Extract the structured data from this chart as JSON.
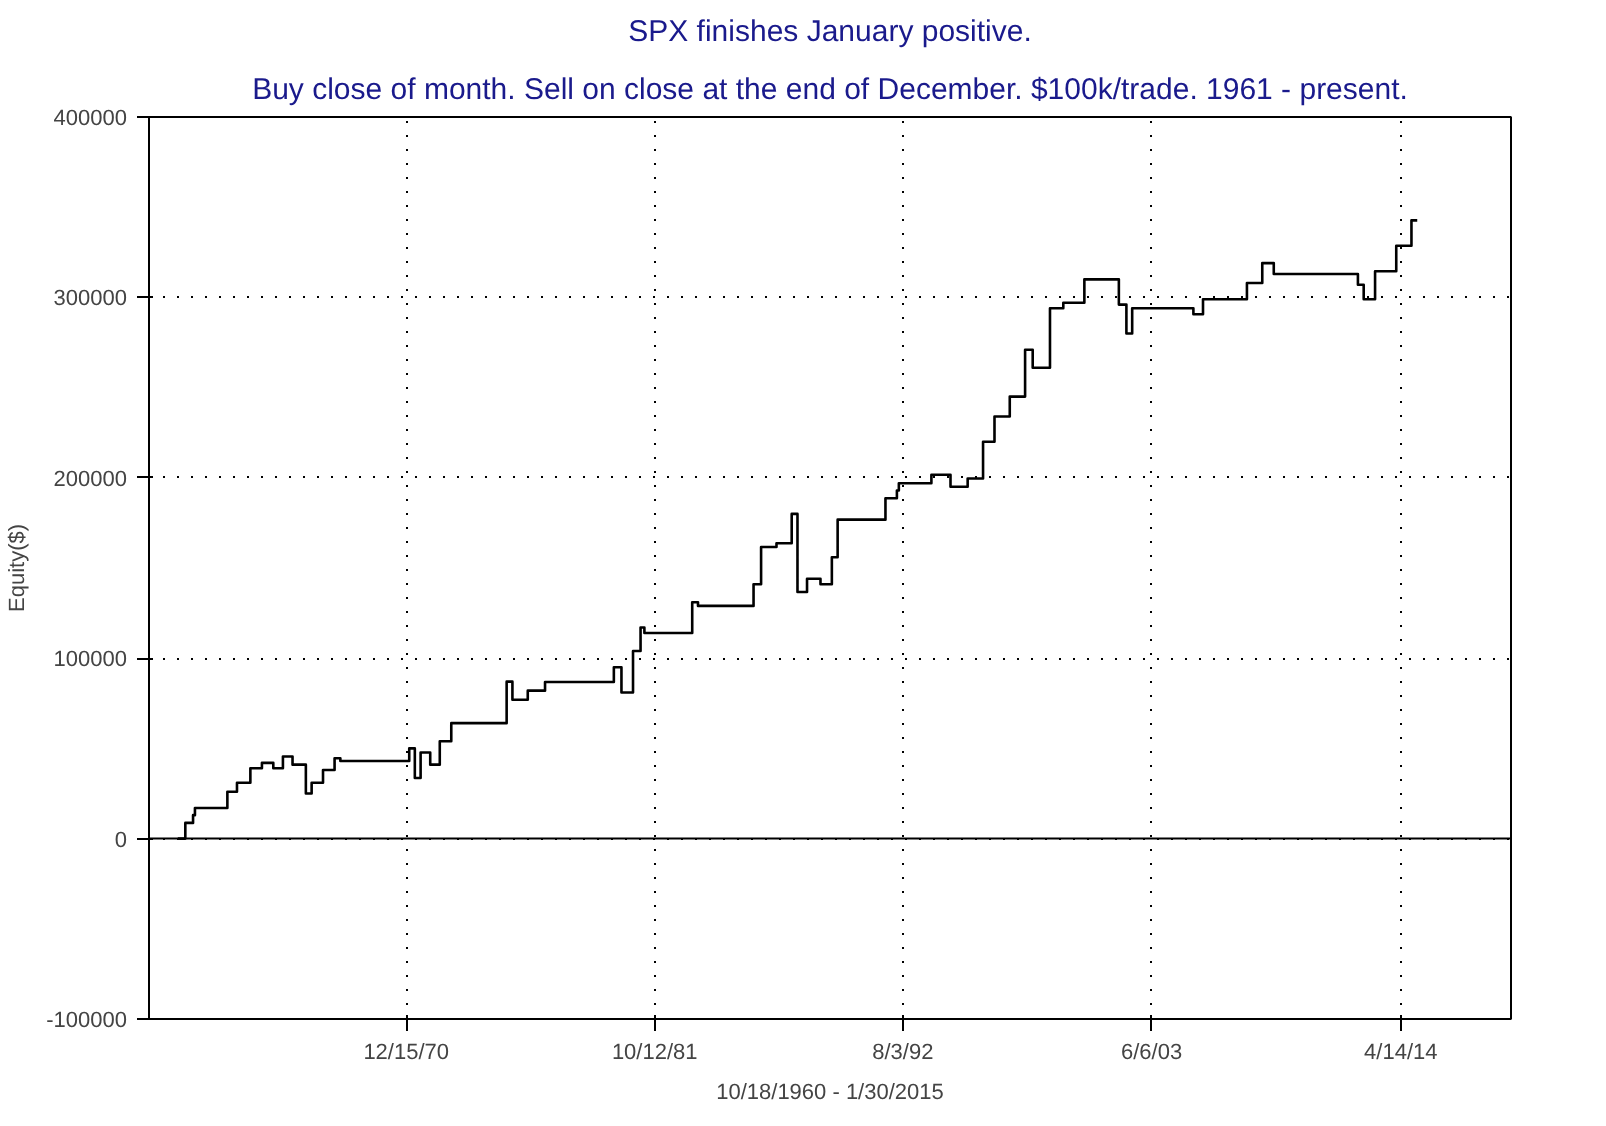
{
  "chart_data": {
    "type": "step",
    "title": "SPX finishes January positive.",
    "subtitle": "Buy close of month. Sell on close at the end of December. $100k/trade. 1961 - present.",
    "xlabel": "10/18/1960 - 1/30/2015",
    "ylabel": "Equity($)",
    "x": [
      "1961-01",
      "1961-05",
      "1961-09",
      "1961-10",
      "1963-01",
      "1963-03",
      "1963-08",
      "1964-03",
      "1964-09",
      "1965-03",
      "1965-08",
      "1966-01",
      "1966-08",
      "1966-11",
      "1967-05",
      "1967-11",
      "1968-02",
      "1970-12",
      "1971-02",
      "1971-05",
      "1971-08",
      "1972-01",
      "1972-06",
      "1972-12",
      "1975-02",
      "1975-05",
      "1975-08",
      "1976-04",
      "1977-01",
      "1979-07",
      "1980-01",
      "1980-05",
      "1980-11",
      "1981-03",
      "1981-05",
      "1983-04",
      "1983-06",
      "1983-09",
      "1985-07",
      "1986-02",
      "1986-06",
      "1987-02",
      "1987-10",
      "1988-01",
      "1988-06",
      "1989-01",
      "1989-07",
      "1989-10",
      "1991-07",
      "1991-11",
      "1992-05",
      "1992-06",
      "1993-02",
      "1993-11",
      "1994-09",
      "1995-06",
      "1996-02",
      "1996-08",
      "1997-04",
      "1997-12",
      "1998-04",
      "1999-01",
      "1999-08",
      "2000-07",
      "2001-08",
      "2002-01",
      "2002-05",
      "2002-08",
      "2004-12",
      "2005-04",
      "2005-09",
      "2007-02",
      "2007-08",
      "2008-04",
      "2008-10",
      "2012-01",
      "2012-06",
      "2012-09",
      "2013-03",
      "2014-02",
      "2014-10",
      "2015-01"
    ],
    "series": [
      {
        "color": "#000000",
        "values": [
          0,
          8700,
          13000,
          17000,
          17000,
          26000,
          31000,
          39000,
          42000,
          39000,
          45500,
          41000,
          25000,
          31000,
          38000,
          44500,
          43000,
          43000,
          50000,
          33600,
          47700,
          41000,
          54000,
          64000,
          64000,
          87000,
          77000,
          82000,
          86800,
          86800,
          95000,
          81000,
          104000,
          117000,
          114000,
          114000,
          131000,
          129000,
          129000,
          141000,
          161600,
          163700,
          180000,
          136700,
          144000,
          141000,
          156000,
          176800,
          176800,
          188700,
          193000,
          197000,
          197000,
          201700,
          195000,
          199600,
          220000,
          234000,
          245000,
          271000,
          261000,
          294000,
          297000,
          310000,
          310000,
          296000,
          280000,
          294000,
          294000,
          290700,
          299000,
          299000,
          308000,
          319000,
          313000,
          313000,
          307000,
          299000,
          314500,
          328600,
          342700,
          342700
        ]
      }
    ],
    "xlim": [
      "1959-10",
      "2019-02"
    ],
    "xticks": [
      {
        "value": "1970-12-15",
        "label": "12/15/70"
      },
      {
        "value": "1981-10-12",
        "label": "10/12/81"
      },
      {
        "value": "1992-08-03",
        "label": "8/3/92"
      },
      {
        "value": "2003-06-06",
        "label": "6/6/03"
      },
      {
        "value": "2014-04-14",
        "label": "4/14/14"
      }
    ],
    "ylim": [
      -100000,
      400000
    ],
    "yticks": [
      -100000,
      0,
      100000,
      200000,
      300000,
      400000
    ],
    "grid": true,
    "line_style": "solid",
    "ref_lines": [
      {
        "axis": "y",
        "value": 0,
        "color": "#000000"
      }
    ]
  }
}
